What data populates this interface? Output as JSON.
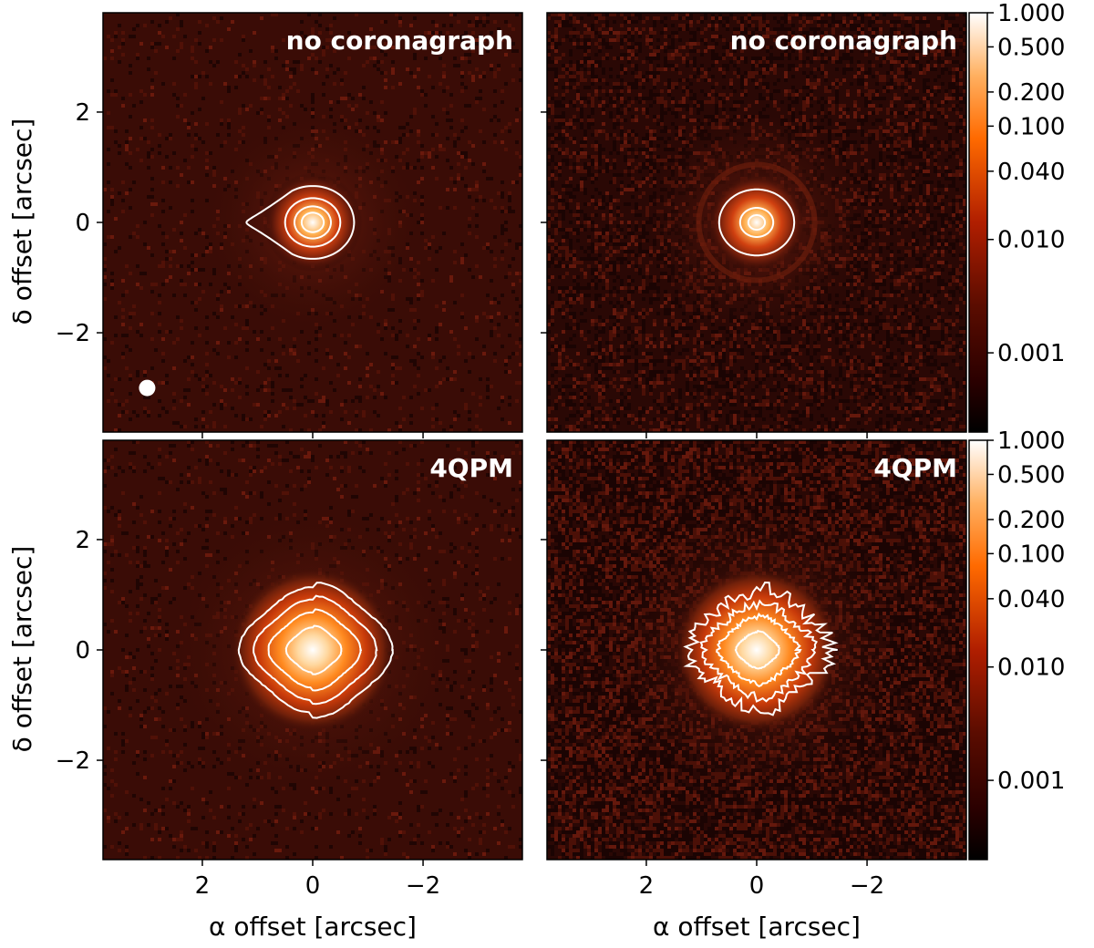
{
  "chart_data": {
    "type": "heatmap",
    "colormap": "gist_heat",
    "xlabel": "α offset [arcsec]",
    "ylabel": "δ offset [arcsec]",
    "xlim": [
      3.8,
      -3.8
    ],
    "ylim": [
      -3.8,
      3.8
    ],
    "x_ticks": [
      2,
      0,
      -2
    ],
    "x_tick_labels": [
      "2",
      "0",
      "−2"
    ],
    "y_ticks": [
      2,
      0,
      -2
    ],
    "y_tick_labels": [
      "2",
      "0",
      "−2"
    ],
    "colorbar": {
      "scale": "log",
      "ticks": [
        1.0,
        0.5,
        0.2,
        0.1,
        0.04,
        0.01,
        0.001
      ],
      "tick_labels": [
        "1.000",
        "0.500",
        "0.200",
        "0.100",
        "0.040",
        "0.010",
        "0.001"
      ]
    },
    "panels": [
      {
        "label": "no coronagraph",
        "row": "top",
        "col": "left",
        "contour_radii_arcsec": [
          0.2,
          0.33,
          0.5,
          0.75
        ],
        "contour_tail_arcsec": 1.2,
        "peak_arcsec": [
          0,
          0
        ],
        "beam_marker_arcsec": [
          3.0,
          -3.0
        ]
      },
      {
        "label": "no coronagraph",
        "row": "top",
        "col": "right",
        "contour_radii_arcsec": [
          0.15,
          0.3,
          0.68
        ],
        "ring_radius_arcsec": 1.05,
        "peak_arcsec": [
          0,
          0
        ]
      },
      {
        "label": "4QPM",
        "row": "bottom",
        "col": "left",
        "contour_radii_arcsec": [
          0.45,
          0.75,
          1.0,
          1.25
        ],
        "peak_arcsec": [
          0,
          0
        ]
      },
      {
        "label": "4QPM",
        "row": "bottom",
        "col": "right",
        "contour_radii_arcsec": [
          0.35,
          0.65,
          0.9,
          1.15
        ],
        "peak_arcsec": [
          0,
          0
        ]
      }
    ]
  }
}
